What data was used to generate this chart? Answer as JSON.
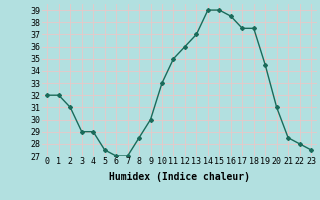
{
  "x": [
    0,
    1,
    2,
    3,
    4,
    5,
    6,
    7,
    8,
    9,
    10,
    11,
    12,
    13,
    14,
    15,
    16,
    17,
    18,
    19,
    20,
    21,
    22,
    23
  ],
  "y": [
    32,
    32,
    31,
    29,
    29,
    27.5,
    27,
    27,
    28.5,
    30,
    33,
    35,
    36,
    37,
    39,
    39,
    38.5,
    37.5,
    37.5,
    34.5,
    31,
    28.5,
    28,
    27.5
  ],
  "xlim": [
    -0.5,
    23.5
  ],
  "ylim": [
    27,
    39.5
  ],
  "yticks": [
    27,
    28,
    29,
    30,
    31,
    32,
    33,
    34,
    35,
    36,
    37,
    38,
    39
  ],
  "xtick_labels": [
    "0",
    "1",
    "2",
    "3",
    "4",
    "5",
    "6",
    "7",
    "8",
    "9",
    "10",
    "11",
    "12",
    "13",
    "14",
    "15",
    "16",
    "17",
    "18",
    "19",
    "20",
    "21",
    "22",
    "23"
  ],
  "xlabel": "Humidex (Indice chaleur)",
  "line_color": "#1a6b5a",
  "marker": "D",
  "marker_size": 2,
  "bg_color": "#b2e0e0",
  "grid_color": "#e8c8c8",
  "label_fontsize": 7,
  "tick_fontsize": 6
}
